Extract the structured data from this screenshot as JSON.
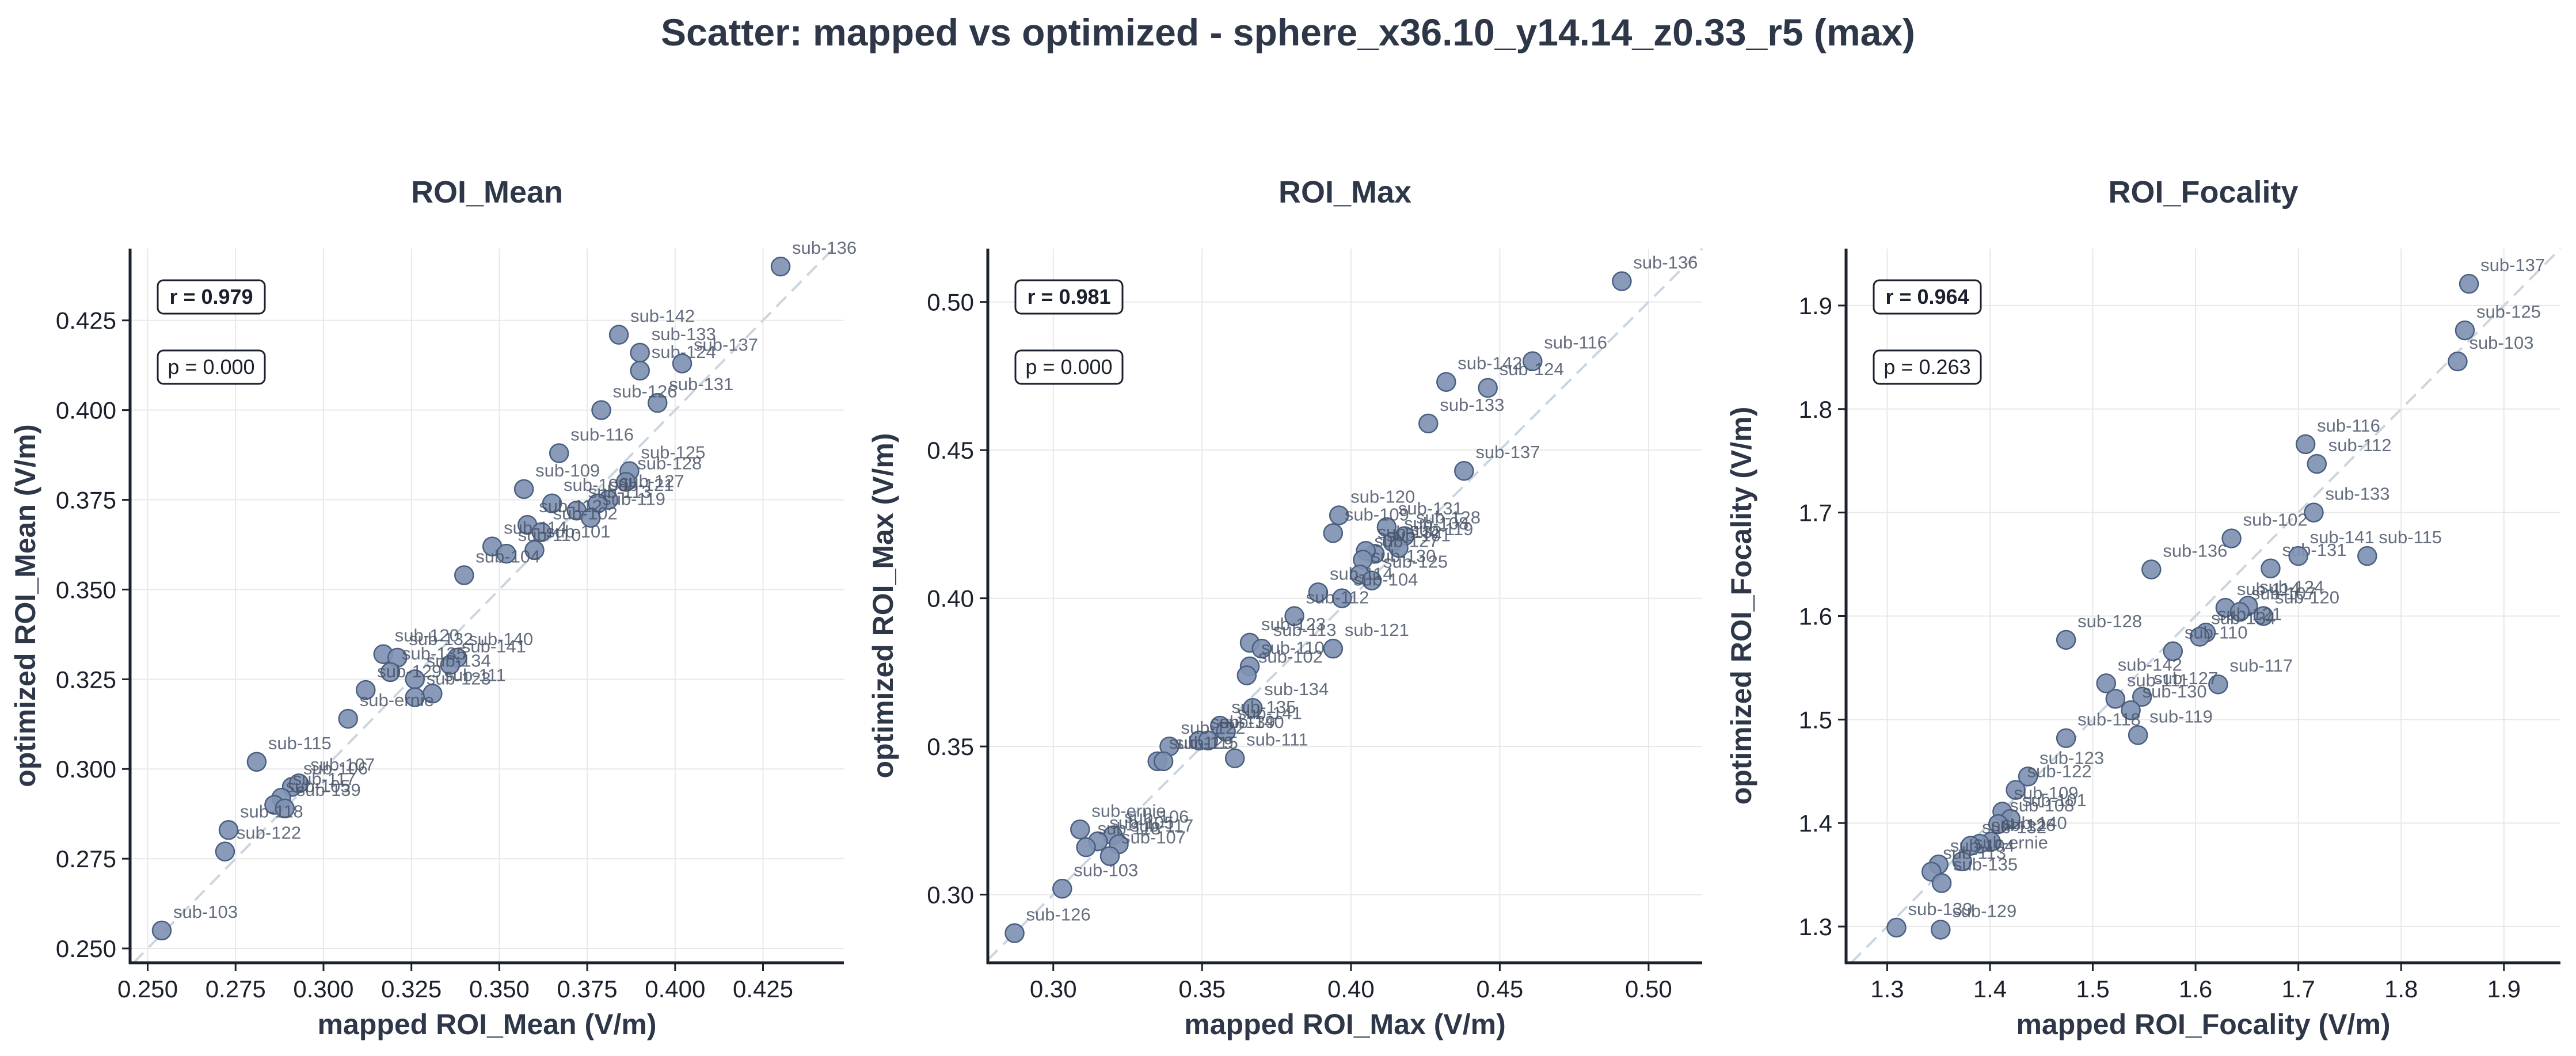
{
  "suptitle": "Scatter: mapped vs optimized - sphere_x36.10_y14.14_z0.33_r5 (max)",
  "colors": {
    "point": "#7f93b3",
    "point_edge": "#4a5f80",
    "grid": "#e8e8e8",
    "diag": "#cbd5e0",
    "text": "#2d3748"
  },
  "chart_data": [
    {
      "type": "scatter",
      "title": "ROI_Mean",
      "xlabel": "mapped ROI_Mean (V/m)",
      "ylabel": "optimized ROI_Mean (V/m)",
      "xlim": [
        0.245,
        0.448
      ],
      "ylim": [
        0.246,
        0.445
      ],
      "xticks": [
        0.25,
        0.275,
        0.3,
        0.325,
        0.35,
        0.375,
        0.4,
        0.425
      ],
      "yticks": [
        0.25,
        0.275,
        0.3,
        0.325,
        0.35,
        0.375,
        0.4,
        0.425
      ],
      "tick_labels_x": [
        "0.250",
        "0.275",
        "0.300",
        "0.325",
        "0.350",
        "0.375",
        "0.400",
        "0.425"
      ],
      "tick_labels_y": [
        "0.250",
        "0.275",
        "0.300",
        "0.325",
        "0.350",
        "0.375",
        "0.400",
        "0.425"
      ],
      "stats": {
        "r": "r = 0.979",
        "p": "p = 0.000"
      },
      "points": [
        {
          "label": "sub-136",
          "x": 0.43,
          "y": 0.44
        },
        {
          "label": "sub-142",
          "x": 0.384,
          "y": 0.421
        },
        {
          "label": "sub-133",
          "x": 0.39,
          "y": 0.416
        },
        {
          "label": "sub-124",
          "x": 0.39,
          "y": 0.411
        },
        {
          "label": "sub-137",
          "x": 0.402,
          "y": 0.413
        },
        {
          "label": "sub-131",
          "x": 0.395,
          "y": 0.402
        },
        {
          "label": "sub-126",
          "x": 0.379,
          "y": 0.4
        },
        {
          "label": "sub-116",
          "x": 0.367,
          "y": 0.388
        },
        {
          "label": "sub-125",
          "x": 0.387,
          "y": 0.383
        },
        {
          "label": "sub-109",
          "x": 0.357,
          "y": 0.378
        },
        {
          "label": "sub-128",
          "x": 0.386,
          "y": 0.38
        },
        {
          "label": "sub-127",
          "x": 0.381,
          "y": 0.375
        },
        {
          "label": "sub-121",
          "x": 0.378,
          "y": 0.374
        },
        {
          "label": "sub-108",
          "x": 0.365,
          "y": 0.374
        },
        {
          "label": "sub-113",
          "x": 0.372,
          "y": 0.372
        },
        {
          "label": "sub-119",
          "x": 0.376,
          "y": 0.37
        },
        {
          "label": "sub-112",
          "x": 0.358,
          "y": 0.368
        },
        {
          "label": "sub-102",
          "x": 0.362,
          "y": 0.366
        },
        {
          "label": "sub-101",
          "x": 0.36,
          "y": 0.361
        },
        {
          "label": "sub-114",
          "x": 0.348,
          "y": 0.362
        },
        {
          "label": "sub-110",
          "x": 0.352,
          "y": 0.36
        },
        {
          "label": "sub-104",
          "x": 0.34,
          "y": 0.354
        },
        {
          "label": "sub-120",
          "x": 0.317,
          "y": 0.332
        },
        {
          "label": "sub-132",
          "x": 0.321,
          "y": 0.331
        },
        {
          "label": "sub-140",
          "x": 0.338,
          "y": 0.331
        },
        {
          "label": "sub-141",
          "x": 0.336,
          "y": 0.329
        },
        {
          "label": "sub-135",
          "x": 0.319,
          "y": 0.327
        },
        {
          "label": "sub-134",
          "x": 0.326,
          "y": 0.325
        },
        {
          "label": "sub-111",
          "x": 0.331,
          "y": 0.321
        },
        {
          "label": "sub-129",
          "x": 0.312,
          "y": 0.322
        },
        {
          "label": "sub-123",
          "x": 0.326,
          "y": 0.32
        },
        {
          "label": "sub-ernie",
          "x": 0.307,
          "y": 0.314
        },
        {
          "label": "sub-115",
          "x": 0.281,
          "y": 0.302
        },
        {
          "label": "sub-106",
          "x": 0.291,
          "y": 0.295
        },
        {
          "label": "sub-107",
          "x": 0.293,
          "y": 0.296
        },
        {
          "label": "sub-117",
          "x": 0.288,
          "y": 0.292
        },
        {
          "label": "sub-105",
          "x": 0.286,
          "y": 0.29
        },
        {
          "label": "sub-139",
          "x": 0.289,
          "y": 0.289
        },
        {
          "label": "sub-118",
          "x": 0.273,
          "y": 0.283
        },
        {
          "label": "sub-122",
          "x": 0.272,
          "y": 0.277
        },
        {
          "label": "sub-103",
          "x": 0.254,
          "y": 0.255
        }
      ]
    },
    {
      "type": "scatter",
      "title": "ROI_Max",
      "xlabel": "mapped ROI_Max (V/m)",
      "ylabel": "optimized ROI_Max (V/m)",
      "xlim": [
        0.278,
        0.518
      ],
      "ylim": [
        0.277,
        0.518
      ],
      "xticks": [
        0.3,
        0.35,
        0.4,
        0.45,
        0.5
      ],
      "yticks": [
        0.3,
        0.35,
        0.4,
        0.45,
        0.5
      ],
      "tick_labels_x": [
        "0.30",
        "0.35",
        "0.40",
        "0.45",
        "0.50"
      ],
      "tick_labels_y": [
        "0.30",
        "0.35",
        "0.40",
        "0.45",
        "0.50"
      ],
      "stats": {
        "r": "r = 0.981",
        "p": "p = 0.000"
      },
      "points": [
        {
          "label": "sub-136",
          "x": 0.491,
          "y": 0.507
        },
        {
          "label": "sub-142",
          "x": 0.432,
          "y": 0.473
        },
        {
          "label": "sub-116",
          "x": 0.461,
          "y": 0.48
        },
        {
          "label": "sub-124",
          "x": 0.446,
          "y": 0.471
        },
        {
          "label": "sub-133",
          "x": 0.426,
          "y": 0.459
        },
        {
          "label": "sub-137",
          "x": 0.438,
          "y": 0.443
        },
        {
          "label": "sub-120",
          "x": 0.396,
          "y": 0.428
        },
        {
          "label": "sub-131",
          "x": 0.412,
          "y": 0.424
        },
        {
          "label": "sub-109",
          "x": 0.394,
          "y": 0.422
        },
        {
          "label": "sub-128",
          "x": 0.418,
          "y": 0.421
        },
        {
          "label": "sub-108",
          "x": 0.414,
          "y": 0.419
        },
        {
          "label": "sub-119",
          "x": 0.416,
          "y": 0.417
        },
        {
          "label": "sub-101",
          "x": 0.408,
          "y": 0.415
        },
        {
          "label": "sub-132",
          "x": 0.405,
          "y": 0.416
        },
        {
          "label": "sub-127",
          "x": 0.404,
          "y": 0.413
        },
        {
          "label": "sub-130",
          "x": 0.403,
          "y": 0.408
        },
        {
          "label": "sub-125",
          "x": 0.407,
          "y": 0.406
        },
        {
          "label": "sub-114",
          "x": 0.389,
          "y": 0.402
        },
        {
          "label": "sub-104",
          "x": 0.397,
          "y": 0.4
        },
        {
          "label": "sub-112",
          "x": 0.381,
          "y": 0.394
        },
        {
          "label": "sub-121",
          "x": 0.394,
          "y": 0.383
        },
        {
          "label": "sub-123",
          "x": 0.366,
          "y": 0.385
        },
        {
          "label": "sub-113",
          "x": 0.37,
          "y": 0.383
        },
        {
          "label": "sub-110",
          "x": 0.366,
          "y": 0.377
        },
        {
          "label": "sub-102",
          "x": 0.365,
          "y": 0.374
        },
        {
          "label": "sub-134",
          "x": 0.367,
          "y": 0.363
        },
        {
          "label": "sub-135",
          "x": 0.356,
          "y": 0.357
        },
        {
          "label": "sub-141",
          "x": 0.358,
          "y": 0.355
        },
        {
          "label": "sub-139",
          "x": 0.349,
          "y": 0.352
        },
        {
          "label": "sub-140",
          "x": 0.352,
          "y": 0.352
        },
        {
          "label": "sub-111",
          "x": 0.361,
          "y": 0.346
        },
        {
          "label": "sub-122",
          "x": 0.339,
          "y": 0.35
        },
        {
          "label": "sub-129",
          "x": 0.335,
          "y": 0.345
        },
        {
          "label": "sub-115",
          "x": 0.337,
          "y": 0.345
        },
        {
          "label": "sub-ernie",
          "x": 0.309,
          "y": 0.322
        },
        {
          "label": "sub-106",
          "x": 0.32,
          "y": 0.32
        },
        {
          "label": "sub-105",
          "x": 0.315,
          "y": 0.318
        },
        {
          "label": "sub-117",
          "x": 0.322,
          "y": 0.317
        },
        {
          "label": "sub-107",
          "x": 0.319,
          "y": 0.313
        },
        {
          "label": "sub-118",
          "x": 0.311,
          "y": 0.316
        },
        {
          "label": "sub-103",
          "x": 0.303,
          "y": 0.302
        },
        {
          "label": "sub-126",
          "x": 0.287,
          "y": 0.287
        }
      ]
    },
    {
      "type": "scatter",
      "title": "ROI_Focality",
      "xlabel": "mapped ROI_Focality (V/m)",
      "ylabel": "optimized ROI_Focality (V/m)",
      "xlim": [
        1.26,
        1.955
      ],
      "ylim": [
        1.265,
        1.955
      ],
      "xticks": [
        1.3,
        1.4,
        1.5,
        1.6,
        1.7,
        1.8,
        1.9
      ],
      "yticks": [
        1.3,
        1.4,
        1.5,
        1.6,
        1.7,
        1.8,
        1.9
      ],
      "tick_labels_x": [
        "1.3",
        "1.4",
        "1.5",
        "1.6",
        "1.7",
        "1.8",
        "1.9"
      ],
      "tick_labels_y": [
        "1.3",
        "1.4",
        "1.5",
        "1.6",
        "1.7",
        "1.8",
        "1.9"
      ],
      "stats": {
        "r": "r = 0.964",
        "p": "p = 0.263"
      },
      "points": [
        {
          "label": "sub-137",
          "x": 1.866,
          "y": 1.921
        },
        {
          "label": "sub-125",
          "x": 1.862,
          "y": 1.876
        },
        {
          "label": "sub-103",
          "x": 1.855,
          "y": 1.846
        },
        {
          "label": "sub-116",
          "x": 1.707,
          "y": 1.766
        },
        {
          "label": "sub-112",
          "x": 1.718,
          "y": 1.747
        },
        {
          "label": "sub-133",
          "x": 1.715,
          "y": 1.7
        },
        {
          "label": "sub-102",
          "x": 1.635,
          "y": 1.675
        },
        {
          "label": "sub-136",
          "x": 1.557,
          "y": 1.645
        },
        {
          "label": "sub-131",
          "x": 1.673,
          "y": 1.646
        },
        {
          "label": "sub-141",
          "x": 1.7,
          "y": 1.658
        },
        {
          "label": "sub-115",
          "x": 1.767,
          "y": 1.658
        },
        {
          "label": "sub-124",
          "x": 1.651,
          "y": 1.61
        },
        {
          "label": "sub-114",
          "x": 1.629,
          "y": 1.608
        },
        {
          "label": "sub-107",
          "x": 1.643,
          "y": 1.604
        },
        {
          "label": "sub-120",
          "x": 1.666,
          "y": 1.6
        },
        {
          "label": "sub-121",
          "x": 1.61,
          "y": 1.584
        },
        {
          "label": "sub-134",
          "x": 1.604,
          "y": 1.58
        },
        {
          "label": "sub-128",
          "x": 1.474,
          "y": 1.577
        },
        {
          "label": "sub-110",
          "x": 1.578,
          "y": 1.566
        },
        {
          "label": "sub-117",
          "x": 1.622,
          "y": 1.534
        },
        {
          "label": "sub-142",
          "x": 1.513,
          "y": 1.535
        },
        {
          "label": "sub-127",
          "x": 1.548,
          "y": 1.522
        },
        {
          "label": "sub-130",
          "x": 1.537,
          "y": 1.509
        },
        {
          "label": "sub-111",
          "x": 1.522,
          "y": 1.52
        },
        {
          "label": "sub-119",
          "x": 1.544,
          "y": 1.485
        },
        {
          "label": "sub-118",
          "x": 1.474,
          "y": 1.482
        },
        {
          "label": "sub-123",
          "x": 1.437,
          "y": 1.445
        },
        {
          "label": "sub-122",
          "x": 1.425,
          "y": 1.432
        },
        {
          "label": "sub-109",
          "x": 1.412,
          "y": 1.411
        },
        {
          "label": "sub-101",
          "x": 1.42,
          "y": 1.404
        },
        {
          "label": "sub-108",
          "x": 1.408,
          "y": 1.399
        },
        {
          "label": "sub-140",
          "x": 1.401,
          "y": 1.382
        },
        {
          "label": "sub-126",
          "x": 1.39,
          "y": 1.38
        },
        {
          "label": "sub-132",
          "x": 1.381,
          "y": 1.378
        },
        {
          "label": "sub-ernie",
          "x": 1.373,
          "y": 1.363
        },
        {
          "label": "sub-104",
          "x": 1.35,
          "y": 1.36
        },
        {
          "label": "sub-113",
          "x": 1.343,
          "y": 1.353
        },
        {
          "label": "sub-135",
          "x": 1.353,
          "y": 1.342
        },
        {
          "label": "sub-139",
          "x": 1.309,
          "y": 1.299
        },
        {
          "label": "sub-129",
          "x": 1.352,
          "y": 1.297
        }
      ]
    }
  ]
}
